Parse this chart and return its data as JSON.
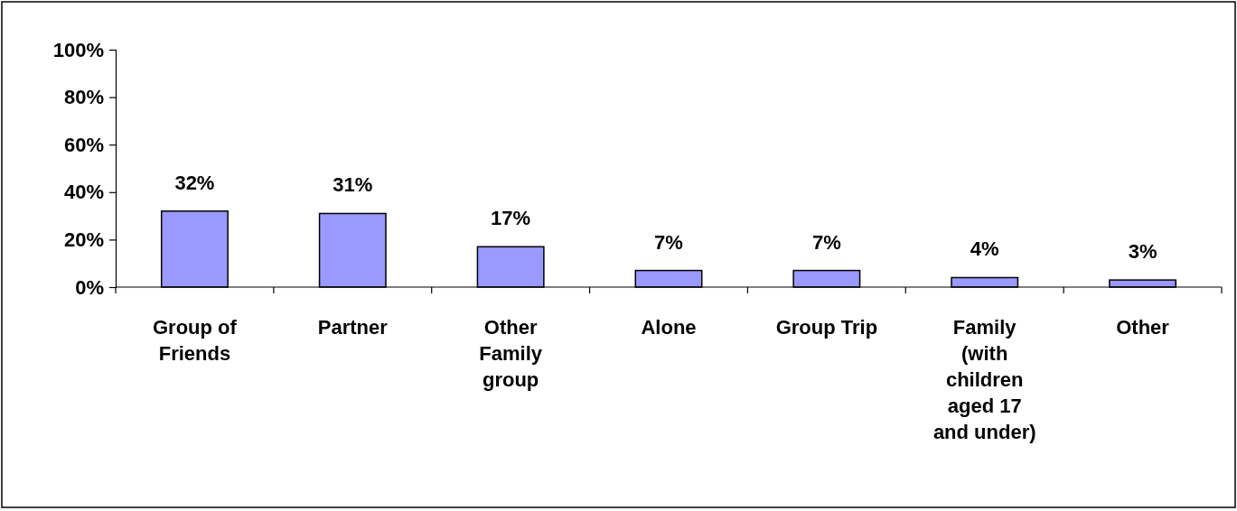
{
  "chart_data": {
    "type": "bar",
    "categories": [
      "Group of Friends",
      "Partner",
      "Other Family group",
      "Alone",
      "Group Trip",
      "Family (with children aged 17 and under)",
      "Other"
    ],
    "values": [
      32,
      31,
      17,
      7,
      7,
      4,
      3
    ],
    "color": "#9999ff",
    "ylim": [
      0,
      100
    ],
    "yticks": [
      {
        "value": 0,
        "label": "0%"
      },
      {
        "value": 20,
        "label": "20%"
      },
      {
        "value": 40,
        "label": "40%"
      },
      {
        "value": 60,
        "label": "60%"
      },
      {
        "value": 80,
        "label": "80%"
      },
      {
        "value": 100,
        "label": "100%"
      }
    ],
    "value_labels": [
      "32%",
      "31%",
      "17%",
      "7%",
      "7%",
      "4%",
      "3%"
    ],
    "grid": false
  }
}
